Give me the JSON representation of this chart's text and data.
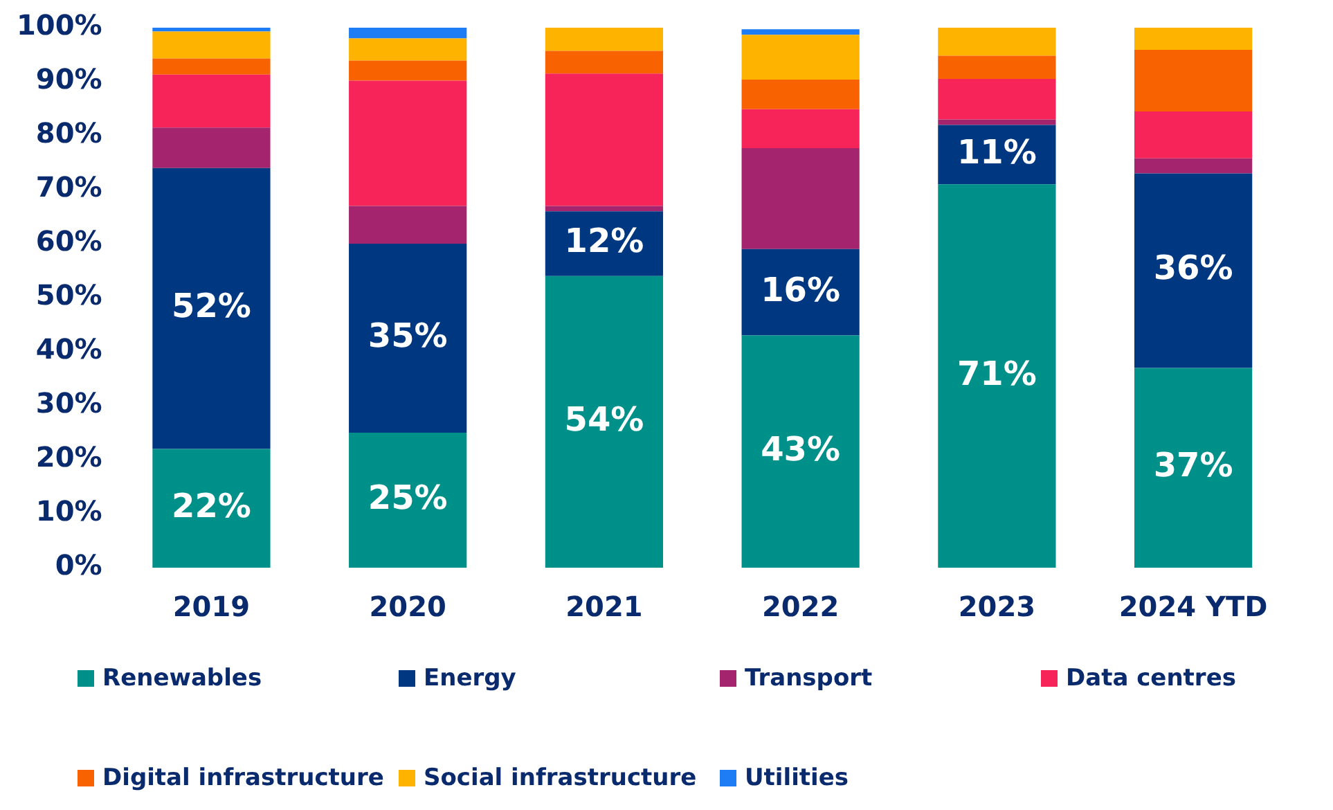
{
  "chart_data": {
    "type": "bar",
    "stacked": true,
    "categories": [
      "2019",
      "2020",
      "2021",
      "2022",
      "2023",
      "2024 YTD"
    ],
    "ylim": [
      0,
      100
    ],
    "yticks": [
      {
        "value": 0,
        "label": "0%"
      },
      {
        "value": 10,
        "label": "10%"
      },
      {
        "value": 20,
        "label": "20%"
      },
      {
        "value": 30,
        "label": "30%"
      },
      {
        "value": 40,
        "label": "40%"
      },
      {
        "value": 50,
        "label": "50%"
      },
      {
        "value": 60,
        "label": "60%"
      },
      {
        "value": 70,
        "label": "70%"
      },
      {
        "value": 80,
        "label": "80%"
      },
      {
        "value": 90,
        "label": "90%"
      },
      {
        "value": 100,
        "label": "100%"
      }
    ],
    "grid": false,
    "legend": "bottom",
    "series": [
      {
        "name": "Renewables",
        "color": "#00908a",
        "values": [
          22,
          25,
          54,
          43,
          71,
          37
        ],
        "value_labels": [
          "22%",
          "25%",
          "54%",
          "43%",
          "71%",
          "37%"
        ]
      },
      {
        "name": "Energy",
        "color": "#003781",
        "values": [
          52,
          35,
          12,
          16,
          11,
          36
        ],
        "value_labels": [
          "52%",
          "35%",
          "12%",
          "16%",
          "11%",
          "36%"
        ]
      },
      {
        "name": "Transport",
        "color": "#a5246e",
        "values": [
          7.5,
          7,
          1,
          18.7,
          1,
          2.8
        ]
      },
      {
        "name": "Data centres",
        "color": "#f62459",
        "values": [
          9.8,
          23.2,
          24.5,
          7.2,
          7.5,
          8.7
        ]
      },
      {
        "name": "Digital infrastructure",
        "color": "#f86200",
        "values": [
          3,
          3.7,
          4.2,
          5.5,
          4.3,
          11.4
        ]
      },
      {
        "name": "Social infrastructure",
        "color": "#fdb300",
        "values": [
          5,
          4.1,
          4.3,
          8.3,
          5.2,
          4.1
        ]
      },
      {
        "name": "Utilities",
        "color": "#1e7df5",
        "values": [
          0.7,
          2,
          0,
          1,
          0,
          0
        ]
      }
    ]
  }
}
